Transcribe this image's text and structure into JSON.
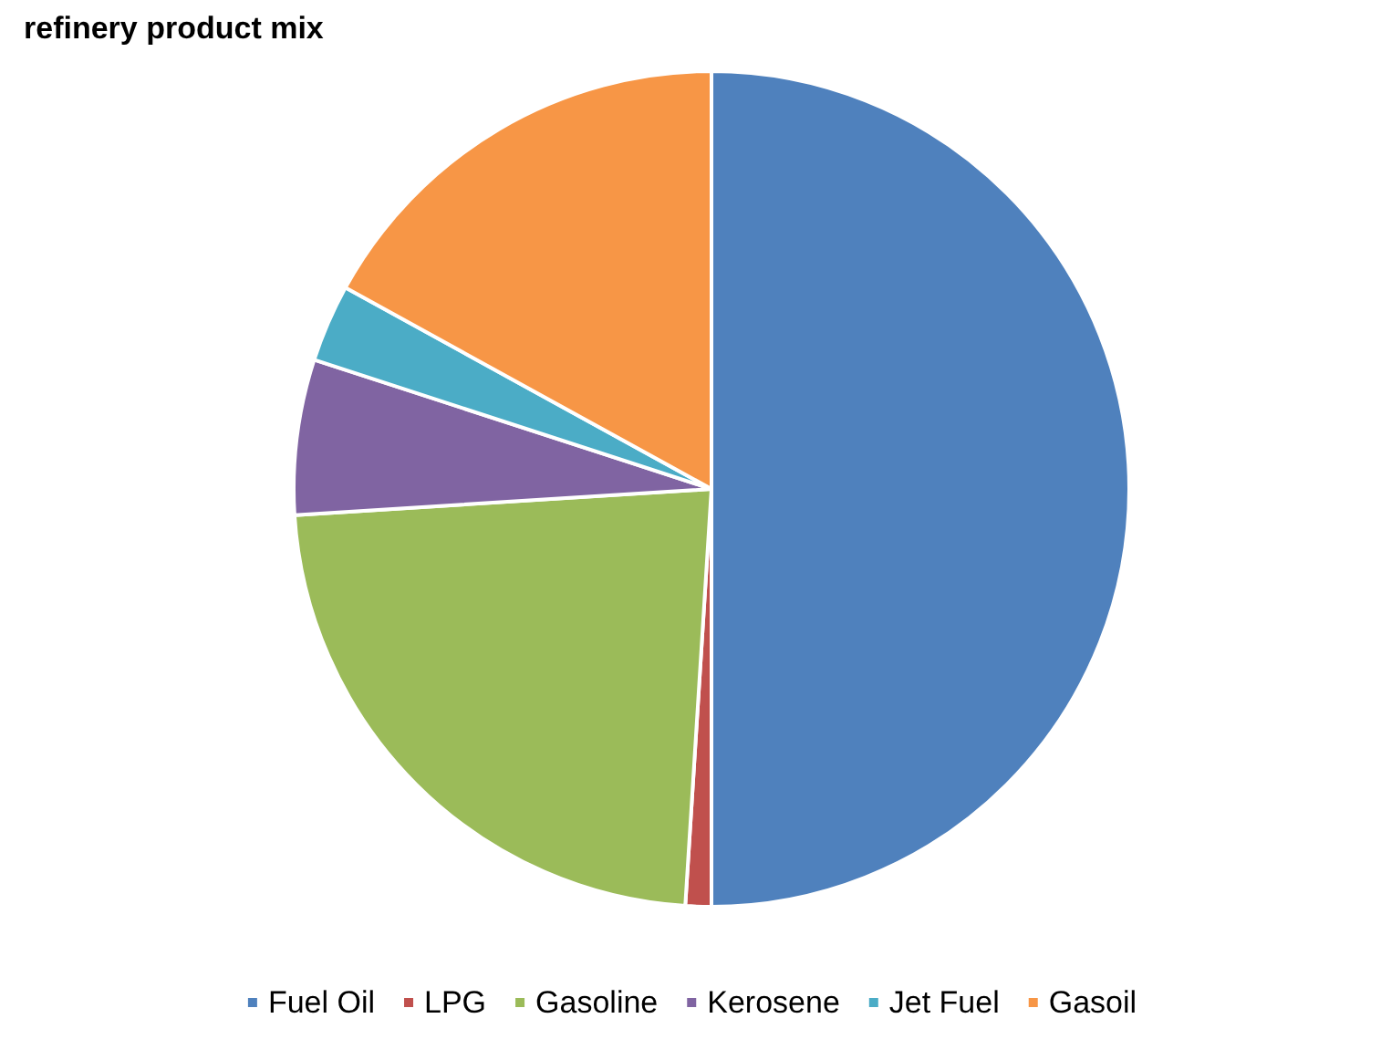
{
  "chart_data": {
    "type": "pie",
    "title": "refinery product mix",
    "categories": [
      "Fuel Oil",
      "LPG",
      "Gasoline",
      "Kerosene",
      "Jet Fuel",
      "Gasoil"
    ],
    "values": [
      50,
      1,
      23,
      6,
      3,
      17
    ],
    "colors": [
      "#4f81bd",
      "#c0504d",
      "#9bbb59",
      "#8064a2",
      "#4bacc6",
      "#f79646"
    ],
    "legend": "bottom"
  }
}
